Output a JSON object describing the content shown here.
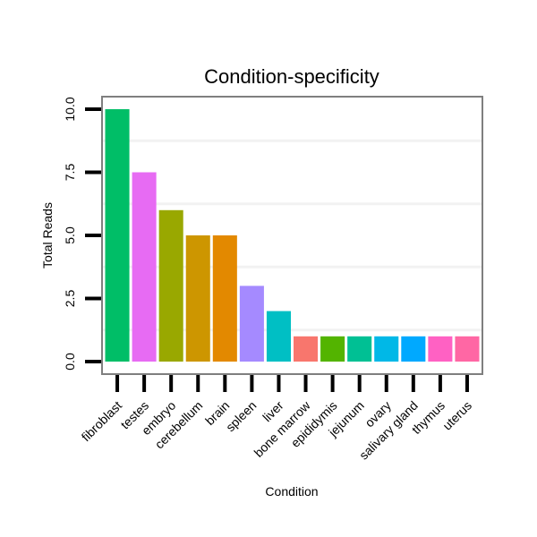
{
  "chart_data": {
    "type": "bar",
    "title": "Condition-specificity",
    "xlabel": "Condition",
    "ylabel": "Total Reads",
    "ylim": [
      0,
      10.5
    ],
    "yticks": [
      0,
      2.5,
      5,
      7.5,
      10
    ],
    "ytick_labels": [
      "0.0",
      "2.5",
      "5.0",
      "7.5",
      "10.0"
    ],
    "grid": "horizontal, faint",
    "legend": "none",
    "categories": [
      "fibroblast",
      "testes",
      "embryo",
      "cerebellum",
      "brain",
      "spleen",
      "liver",
      "bone marrow",
      "epididymis",
      "jejunum",
      "ovary",
      "salivary gland",
      "thymus",
      "uterus"
    ],
    "values": [
      10,
      7.5,
      6,
      5,
      5,
      3,
      2,
      1,
      1,
      1,
      1,
      1,
      1,
      1
    ],
    "colors": [
      "#00BE67",
      "#E76BF3",
      "#99A800",
      "#CD9600",
      "#E38900",
      "#A58AFF",
      "#00BFC4",
      "#F8766D",
      "#53B400",
      "#00C094",
      "#00B8E7",
      "#00A9FF",
      "#FF61C3",
      "#FF67A4"
    ]
  }
}
